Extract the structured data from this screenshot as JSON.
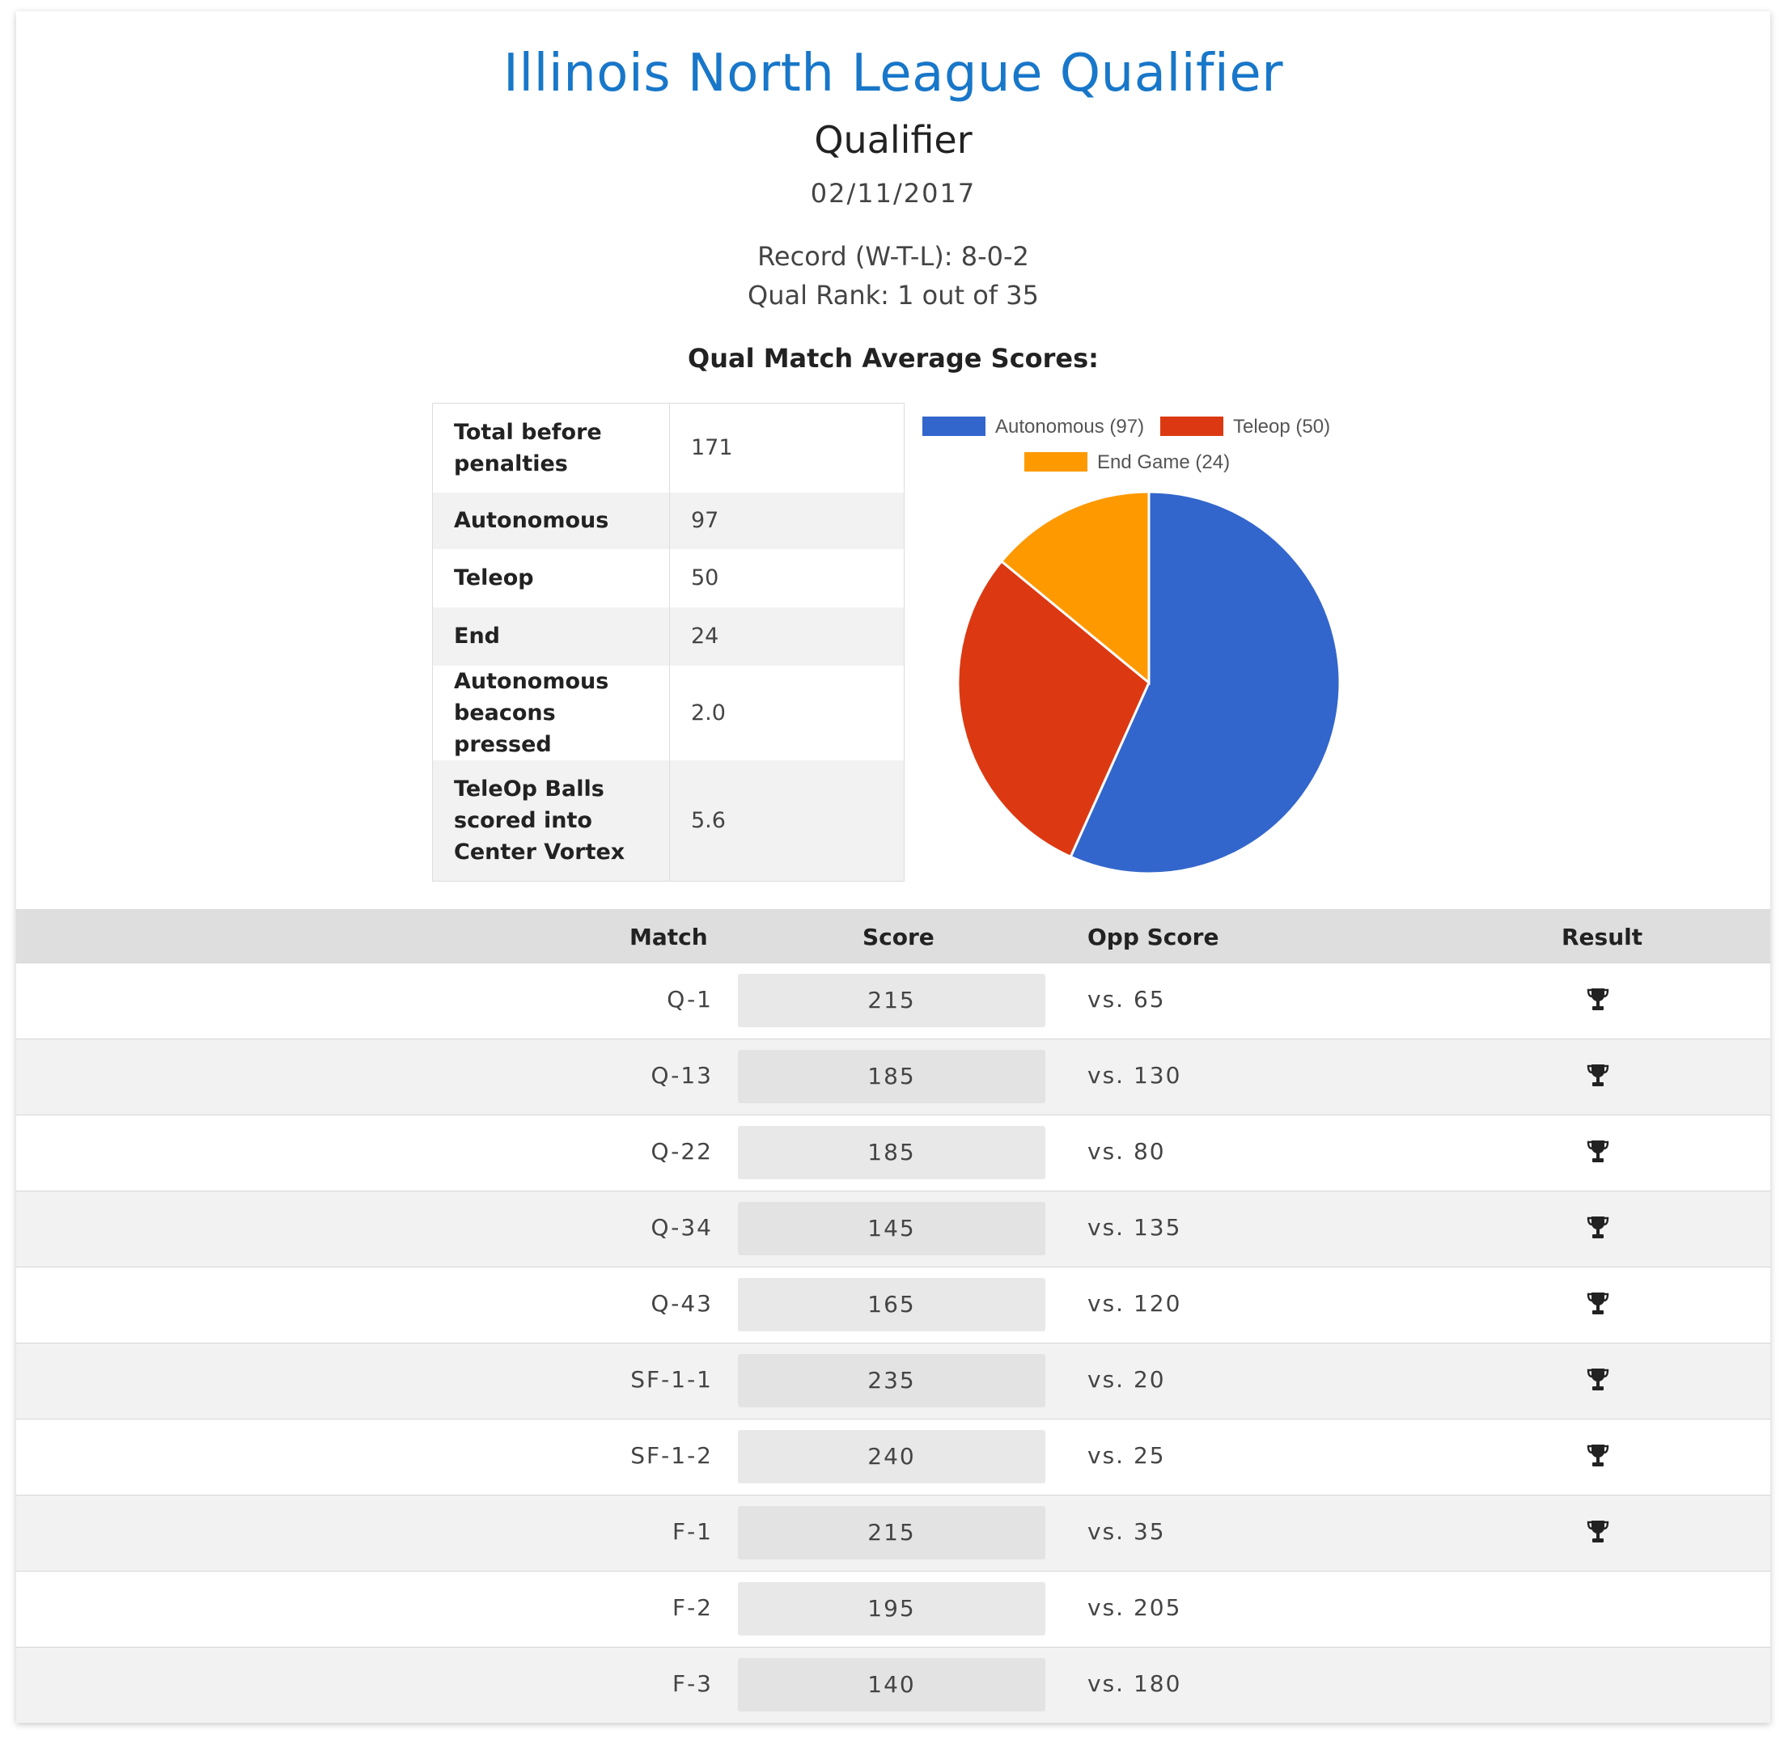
{
  "header": {
    "title": "Illinois North League Qualifier",
    "subtitle": "Qualifier",
    "date": "02/11/2017",
    "record": "Record (W-T-L): 8-0-2",
    "rank": "Qual Rank: 1 out of 35",
    "avg_heading": "Qual Match Average Scores:"
  },
  "averages": [
    {
      "label_lines": [
        "Total before",
        "penalties"
      ],
      "value": "171"
    },
    {
      "label_lines": [
        "Autonomous"
      ],
      "value": "97"
    },
    {
      "label_lines": [
        "Teleop"
      ],
      "value": "50"
    },
    {
      "label_lines": [
        "End"
      ],
      "value": "24"
    },
    {
      "label_lines": [
        "Autonomous",
        "beacons pressed"
      ],
      "value": "2.0"
    },
    {
      "label_lines": [
        "TeleOp Balls",
        "scored into",
        "Center Vortex"
      ],
      "value": "5.6"
    }
  ],
  "chart_data": {
    "type": "pie",
    "categories": [
      "Autonomous",
      "Teleop",
      "End Game"
    ],
    "values": [
      97,
      50,
      24
    ],
    "legend": [
      "Autonomous (97)",
      "Teleop (50)",
      "End Game (24)"
    ],
    "colors": [
      "#3366cc",
      "#dc3912",
      "#ff9900"
    ],
    "legend_position": "top"
  },
  "matches": {
    "headers": {
      "match": "Match",
      "score": "Score",
      "opp": "Opp Score",
      "result": "Result"
    },
    "rows": [
      {
        "match": "Q-1",
        "score": "215",
        "opp": "vs. 65",
        "won": true
      },
      {
        "match": "Q-13",
        "score": "185",
        "opp": "vs. 130",
        "won": true
      },
      {
        "match": "Q-22",
        "score": "185",
        "opp": "vs. 80",
        "won": true
      },
      {
        "match": "Q-34",
        "score": "145",
        "opp": "vs. 135",
        "won": true
      },
      {
        "match": "Q-43",
        "score": "165",
        "opp": "vs. 120",
        "won": true
      },
      {
        "match": "SF-1-1",
        "score": "235",
        "opp": "vs. 20",
        "won": true
      },
      {
        "match": "SF-1-2",
        "score": "240",
        "opp": "vs. 25",
        "won": true
      },
      {
        "match": "F-1",
        "score": "215",
        "opp": "vs. 35",
        "won": true
      },
      {
        "match": "F-2",
        "score": "195",
        "opp": "vs. 205",
        "won": false
      },
      {
        "match": "F-3",
        "score": "140",
        "opp": "vs. 180",
        "won": false
      }
    ],
    "win_icon": "trophy-icon"
  }
}
